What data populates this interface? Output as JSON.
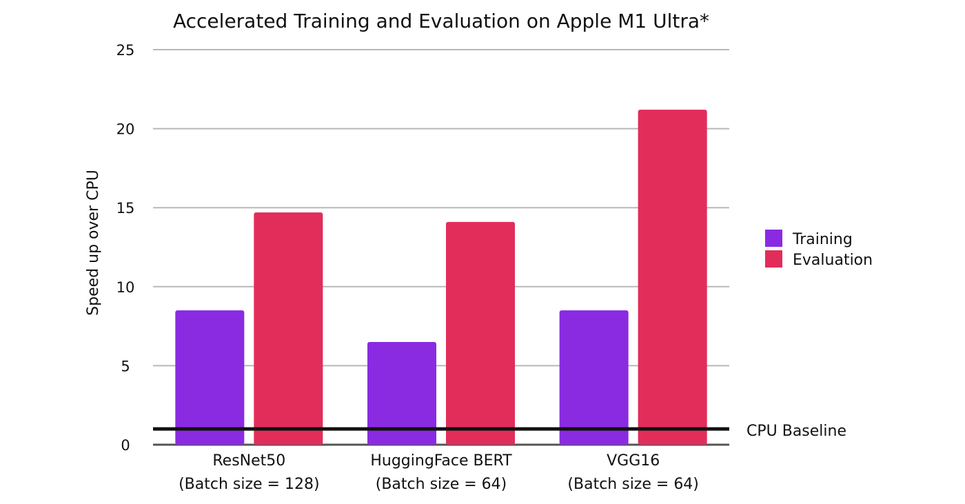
{
  "chart_data": {
    "type": "bar",
    "title": "Accelerated Training and Evaluation on Apple M1 Ultra*",
    "xlabel": "",
    "ylabel": "Speed up over CPU",
    "ylim": [
      0,
      25
    ],
    "yticks": [
      "0",
      "5",
      "10",
      "15",
      "20",
      "25"
    ],
    "categories": [
      {
        "name": "ResNet50",
        "detail": "(Batch size = 128)"
      },
      {
        "name": "HuggingFace BERT",
        "detail": "(Batch size = 64)"
      },
      {
        "name": "VGG16",
        "detail": "(Batch size = 64)"
      }
    ],
    "series": [
      {
        "name": "Training",
        "color": "#8a2be2",
        "values": [
          8.5,
          6.5,
          8.5
        ]
      },
      {
        "name": "Evaluation",
        "color": "#e22d5a",
        "values": [
          14.7,
          14.1,
          21.2
        ]
      }
    ],
    "reference_line": {
      "label": "CPU Baseline",
      "value": 1
    },
    "grid": true,
    "legend_position": "right"
  }
}
